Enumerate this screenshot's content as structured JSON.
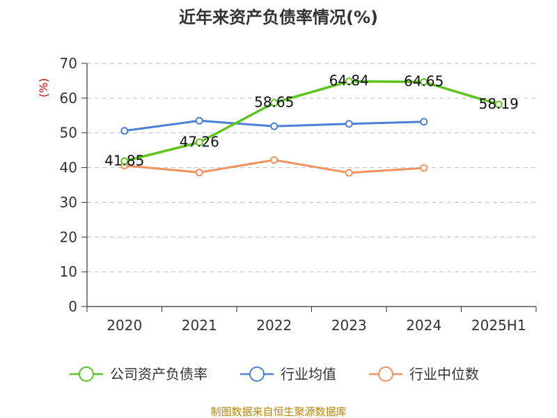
{
  "chart_data": {
    "type": "line",
    "title": "近年来资产负债率情况(%)",
    "ylabel": "(%)",
    "xlabel": "",
    "categories": [
      "2020",
      "2021",
      "2022",
      "2023",
      "2024",
      "2025H1"
    ],
    "ylim": [
      0,
      70
    ],
    "yticks": [
      0,
      10,
      20,
      30,
      40,
      50,
      60,
      70
    ],
    "grid": true,
    "legend_position": "bottom",
    "series": [
      {
        "name": "公司资产负债率",
        "color": "#5cc41d",
        "values": [
          41.85,
          47.26,
          58.65,
          64.84,
          64.65,
          58.19
        ],
        "labels": [
          "41.85",
          "47.26",
          "58.65",
          "64.84",
          "64.65",
          "58.19"
        ]
      },
      {
        "name": "行业均值",
        "color": "#4a7fd8",
        "values": [
          50.6,
          53.5,
          51.9,
          52.6,
          53.2,
          null
        ]
      },
      {
        "name": "行业中位数",
        "color": "#f4915c",
        "values": [
          40.6,
          38.6,
          42.2,
          38.5,
          39.9,
          null
        ]
      }
    ],
    "source": "制图数据来自恒生聚源数据库"
  }
}
